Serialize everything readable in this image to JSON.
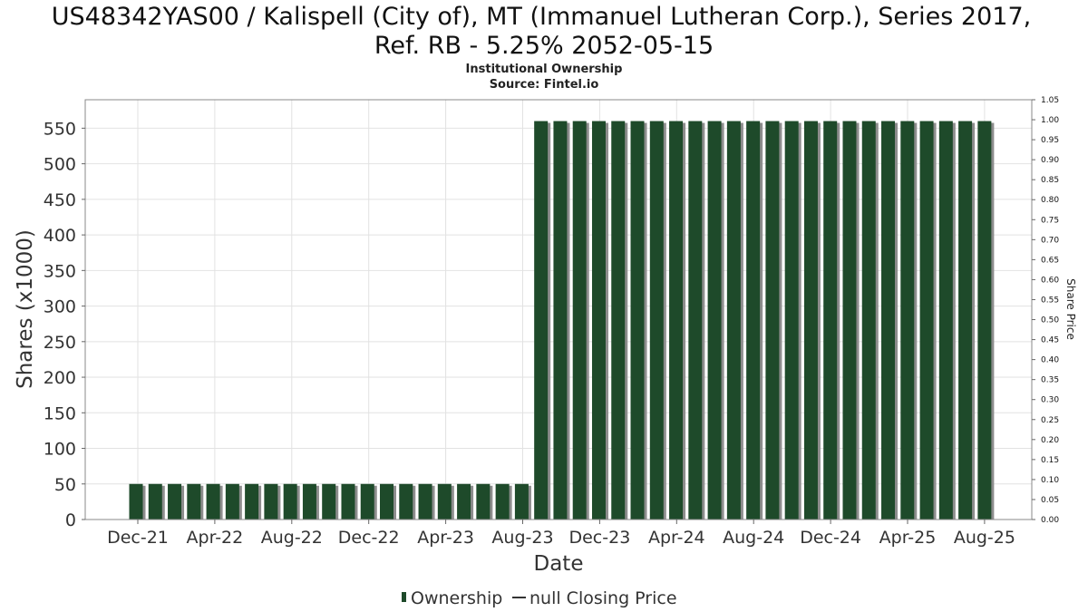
{
  "chart_data": {
    "type": "bar",
    "title_line1": "US48342YAS00 / Kalispell (City of), MT (Immanuel Lutheran Corp.), Series 2017,",
    "title_line2": "Ref. RB - 5.25% 2052-05-15",
    "subtitle": "Institutional Ownership",
    "source": "Source: Fintel.io",
    "xlabel": "Date",
    "ylabel": "Shares (x1000)",
    "y2label": "Share Price",
    "ylim": [
      0,
      590
    ],
    "y2lim": [
      0,
      1.05
    ],
    "y_ticks": [
      "0",
      "50",
      "100",
      "150",
      "200",
      "250",
      "300",
      "350",
      "400",
      "450",
      "500",
      "550"
    ],
    "y2_ticks": [
      "0.00",
      "0.05",
      "0.10",
      "0.15",
      "0.20",
      "0.25",
      "0.30",
      "0.35",
      "0.40",
      "0.45",
      "0.50",
      "0.55",
      "0.60",
      "0.65",
      "0.70",
      "0.75",
      "0.80",
      "0.85",
      "0.90",
      "0.95",
      "1.00",
      "1.05"
    ],
    "x_ticks": [
      "Dec-21",
      "Apr-22",
      "Aug-22",
      "Dec-22",
      "Apr-23",
      "Aug-23",
      "Dec-23",
      "Apr-24",
      "Aug-24",
      "Dec-24",
      "Apr-25",
      "Aug-25"
    ],
    "grid": true,
    "bar_color": "#1e4a2a",
    "series": [
      {
        "name": "Ownership",
        "values": [
          50,
          50,
          50,
          50,
          50,
          50,
          50,
          50,
          50,
          50,
          50,
          50,
          50,
          50,
          50,
          50,
          50,
          50,
          50,
          50,
          50,
          560,
          560,
          560,
          560,
          560,
          560,
          560,
          560,
          560,
          560,
          560,
          560,
          560,
          560,
          560,
          560,
          560,
          560,
          560,
          560,
          560,
          560,
          560,
          560
        ]
      }
    ],
    "legend": {
      "position": "bottom",
      "entries": [
        "Ownership",
        "null Closing Price"
      ]
    }
  }
}
